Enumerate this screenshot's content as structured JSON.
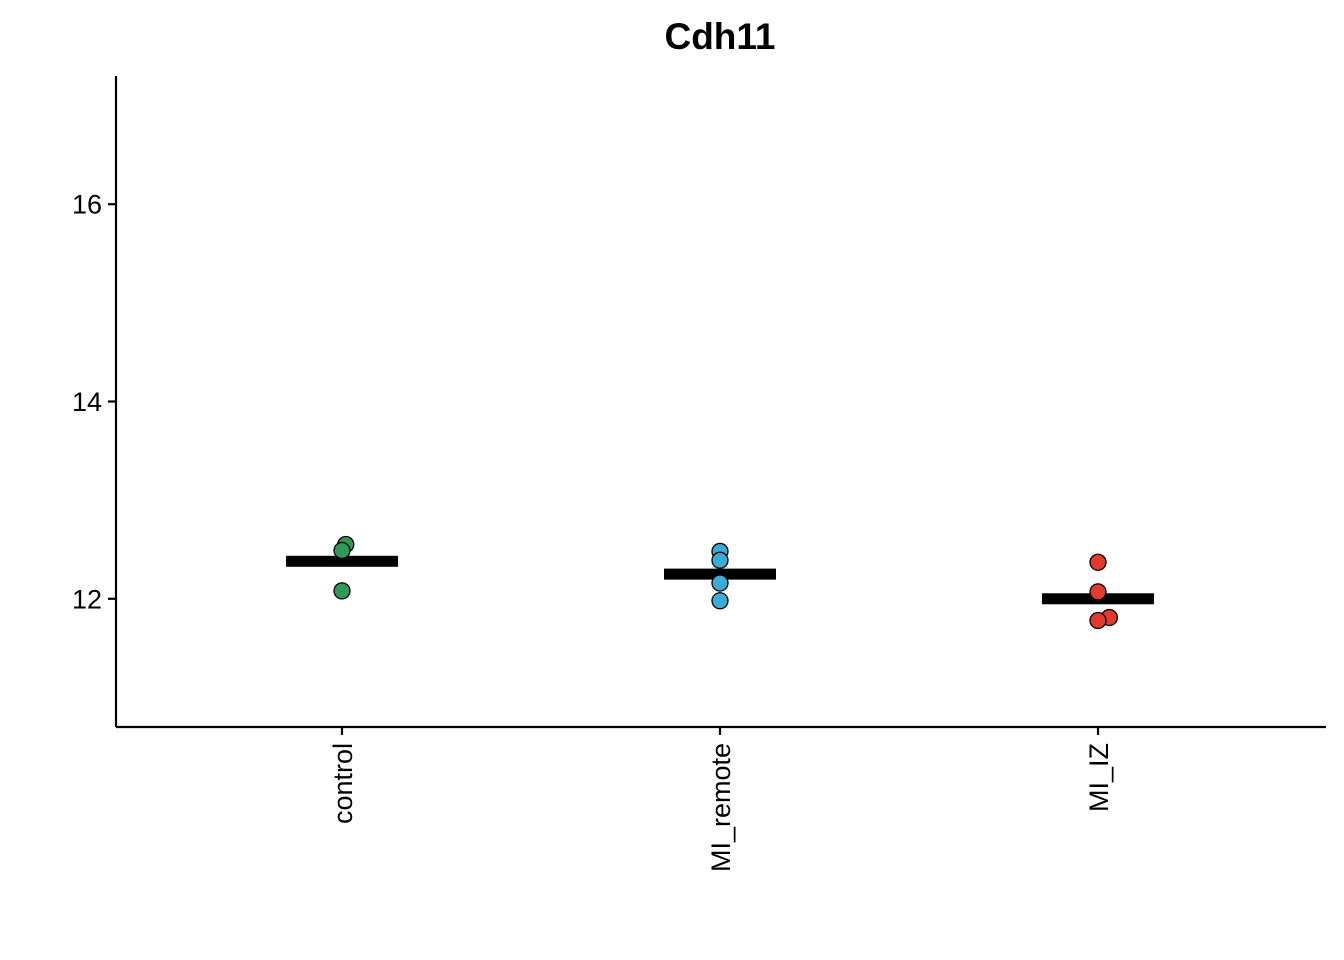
{
  "chart_data": {
    "type": "scatter",
    "title": "Cdh11",
    "xlabel": "",
    "ylabel": "",
    "categories": [
      "control",
      "MI_remote",
      "MI_IZ"
    ],
    "ylim": [
      10.7,
      17.3
    ],
    "yticks": [
      12,
      14,
      16
    ],
    "ytick_labels": [
      "12",
      "14",
      "16"
    ],
    "grid": false,
    "legend": "none",
    "point_outline_color": "#000000",
    "summary_bar_color": "#000000",
    "series": [
      {
        "category": "control",
        "color": "#2e9a5a",
        "points": [
          {
            "x_offset": 0.01,
            "y": 12.55
          },
          {
            "x_offset": 0.0,
            "y": 12.49
          },
          {
            "x_offset": 0.0,
            "y": 12.08
          }
        ],
        "mean": 12.38
      },
      {
        "category": "MI_remote",
        "color": "#3bacd6",
        "points": [
          {
            "x_offset": 0.0,
            "y": 12.48
          },
          {
            "x_offset": 0.0,
            "y": 12.39
          },
          {
            "x_offset": 0.0,
            "y": 12.16
          },
          {
            "x_offset": 0.0,
            "y": 11.98
          }
        ],
        "mean": 12.25
      },
      {
        "category": "MI_IZ",
        "color": "#e23b2d",
        "points": [
          {
            "x_offset": 0.0,
            "y": 12.37
          },
          {
            "x_offset": 0.0,
            "y": 12.07
          },
          {
            "x_offset": 0.03,
            "y": 11.81
          },
          {
            "x_offset": 0.0,
            "y": 11.78
          }
        ],
        "mean": 12.0
      }
    ]
  }
}
